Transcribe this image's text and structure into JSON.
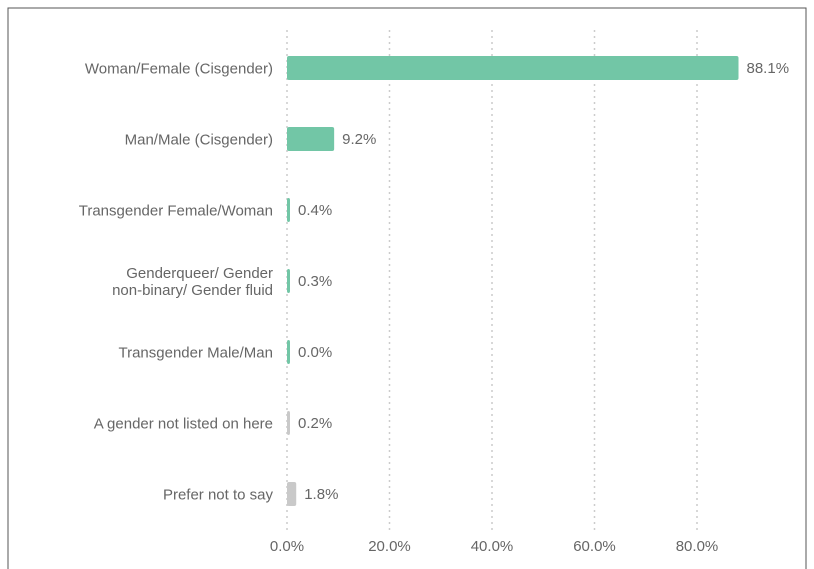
{
  "chart_data": {
    "type": "hbar",
    "categories": [
      "Woman/Female (Cisgender)",
      "Man/Male (Cisgender)",
      "Transgender Female/Woman",
      "Genderqueer/ Gender\nnon-binary/ Gender fluid",
      "Transgender Male/Man",
      "A gender not listed on here",
      "Prefer not to say"
    ],
    "values": [
      88.1,
      9.2,
      0.4,
      0.3,
      0.0,
      0.2,
      1.8
    ],
    "value_labels": [
      "88.1%",
      "9.2%",
      "0.4%",
      "0.3%",
      "0.0%",
      "0.2%",
      "1.8%"
    ],
    "colors": [
      "#72c6a6",
      "#72c6a6",
      "#72c6a6",
      "#72c6a6",
      "#72c6a6",
      "#c9c9c9",
      "#c9c9c9"
    ],
    "xlim": [
      0,
      100
    ],
    "xticks": [
      {
        "value": 0,
        "label": "0.0%"
      },
      {
        "value": 20,
        "label": "20.0%"
      },
      {
        "value": 40,
        "label": "40.0%"
      },
      {
        "value": 60,
        "label": "60.0%"
      },
      {
        "value": 80,
        "label": "80.0%"
      }
    ],
    "grid": true
  }
}
